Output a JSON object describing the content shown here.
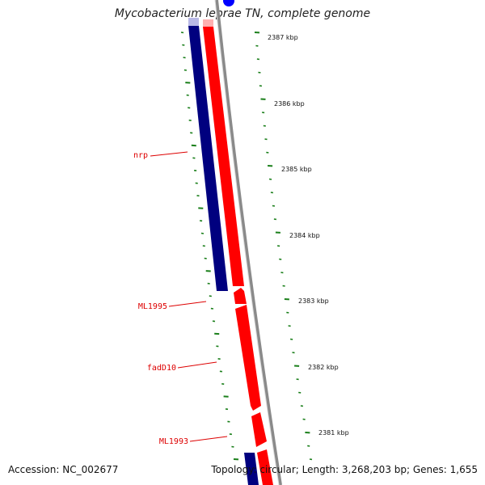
{
  "title": "Mycobacterium leprae TN, complete genome",
  "accession": "Accession: NC_002677",
  "summary": "Topology: circular; Length: 3,268,203 bp; Genes: 1,655",
  "colors": {
    "reverse_strand": "#00007f",
    "forward_strand": "#ff0000",
    "backbone": "#888888",
    "gene_label": "#dd0000",
    "ticks": "#1a7f1a",
    "marker": "#0000ff"
  },
  "gene_labels": [
    {
      "name": "nrp",
      "text": "nrp"
    },
    {
      "name": "ML1995",
      "text": "ML1995"
    },
    {
      "name": "fadD10",
      "text": "fadD10"
    },
    {
      "name": "ML1993",
      "text": "ML1993"
    }
  ],
  "scale_ticks": [
    "2387 kbp",
    "2386 kbp",
    "2385 kbp",
    "2384 kbp",
    "2383 kbp",
    "2382 kbp",
    "2381 kbp"
  ]
}
